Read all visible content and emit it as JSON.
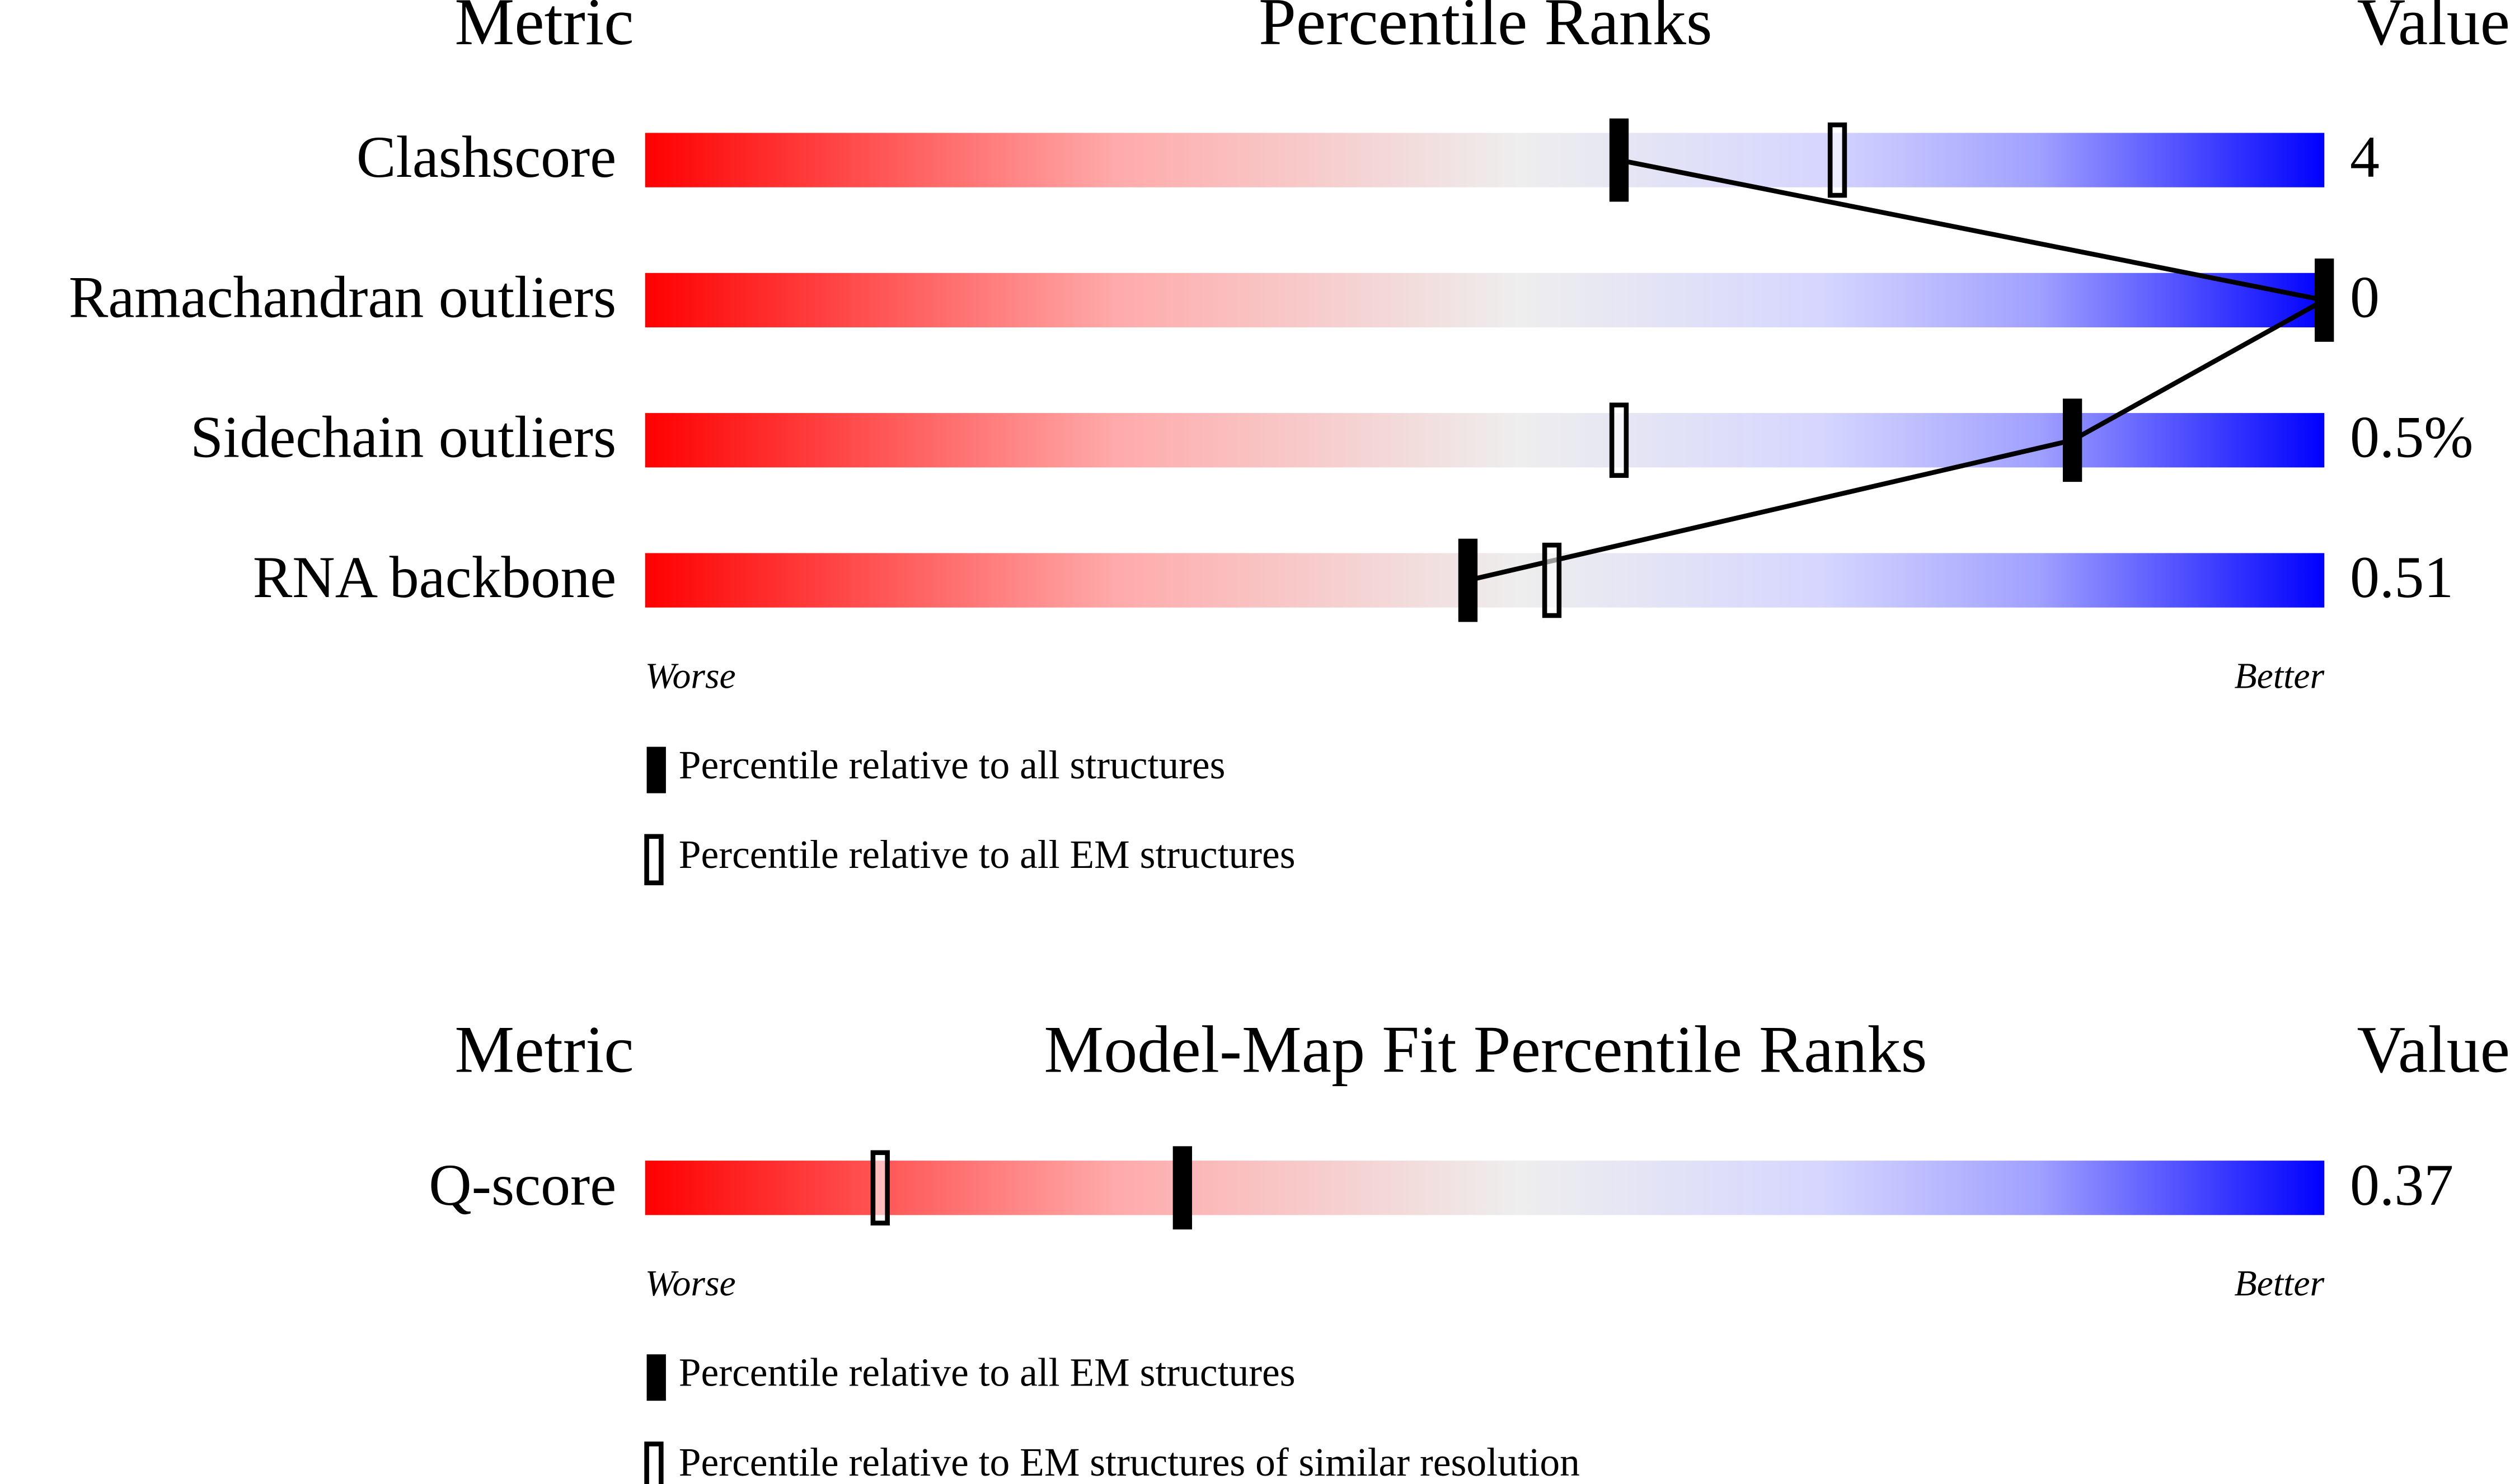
{
  "chart_data": [
    {
      "type": "slider",
      "title": "Percentile Ranks",
      "metric_header": "Metric",
      "value_header": "Value",
      "categories": [
        "Clashscore",
        "Ramachandran outliers",
        "Sidechain outliers",
        "RNA backbone"
      ],
      "value_column": [
        "4",
        "0",
        "0.5%",
        "0.51"
      ],
      "xlim": [
        0,
        100
      ],
      "low_label": "Worse",
      "high_label": "Better",
      "series": [
        {
          "name": "Percentile relative to all structures",
          "color": "#000000",
          "marker": "filled",
          "values": [
            58,
            100,
            85,
            49
          ]
        },
        {
          "name": "Percentile relative to all EM structures",
          "color": "#000000",
          "marker": "open",
          "values": [
            71,
            null,
            58,
            54
          ]
        }
      ]
    },
    {
      "type": "slider",
      "title": "Model-Map Fit Percentile Ranks",
      "metric_header": "Metric",
      "value_header": "Value",
      "categories": [
        "Q-score"
      ],
      "value_column": [
        "0.37"
      ],
      "xlim": [
        0,
        100
      ],
      "low_label": "Worse",
      "high_label": "Better",
      "series": [
        {
          "name": "Percentile relative to all EM structures",
          "color": "#000000",
          "marker": "filled",
          "values": [
            32
          ]
        },
        {
          "name": "Percentile relative to EM structures of similar resolution",
          "color": "#000000",
          "marker": "open",
          "values": [
            14
          ]
        }
      ]
    }
  ]
}
